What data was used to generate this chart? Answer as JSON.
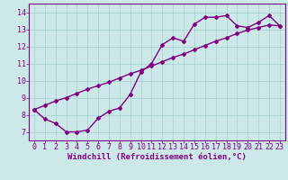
{
  "line1_x": [
    0,
    1,
    2,
    3,
    4,
    5,
    6,
    7,
    8,
    9,
    10,
    11,
    12,
    13,
    14,
    15,
    16,
    17,
    18,
    19,
    20,
    21,
    22,
    23
  ],
  "line1_y": [
    8.3,
    7.75,
    7.5,
    7.0,
    7.0,
    7.1,
    7.8,
    8.2,
    8.4,
    9.2,
    10.5,
    11.0,
    12.1,
    12.5,
    12.3,
    13.3,
    13.7,
    13.7,
    13.8,
    13.2,
    13.1,
    13.4,
    13.8,
    13.2
  ],
  "line2_x": [
    0,
    1,
    2,
    3,
    4,
    5,
    6,
    7,
    8,
    9,
    10,
    11,
    12,
    13,
    14,
    15,
    16,
    17,
    18,
    19,
    20,
    21,
    22,
    23
  ],
  "line2_y": [
    8.3,
    8.55,
    8.8,
    9.0,
    9.25,
    9.5,
    9.7,
    9.9,
    10.15,
    10.4,
    10.6,
    10.85,
    11.1,
    11.35,
    11.55,
    11.8,
    12.05,
    12.3,
    12.5,
    12.75,
    12.95,
    13.1,
    13.25,
    13.2
  ],
  "line_color": "#800080",
  "bg_color": "#cce8e8",
  "grid_color": "#aad4d4",
  "xlabel": "Windchill (Refroidissement éolien,°C)",
  "ylim": [
    6.5,
    14.5
  ],
  "xlim": [
    -0.5,
    23.5
  ],
  "yticks": [
    7,
    8,
    9,
    10,
    11,
    12,
    13,
    14
  ],
  "xticks": [
    0,
    1,
    2,
    3,
    4,
    5,
    6,
    7,
    8,
    9,
    10,
    11,
    12,
    13,
    14,
    15,
    16,
    17,
    18,
    19,
    20,
    21,
    22,
    23
  ],
  "marker": "D",
  "markersize": 2.0,
  "linewidth": 1.0,
  "xlabel_fontsize": 6.5,
  "tick_fontsize": 6.0,
  "font_color": "#800080"
}
